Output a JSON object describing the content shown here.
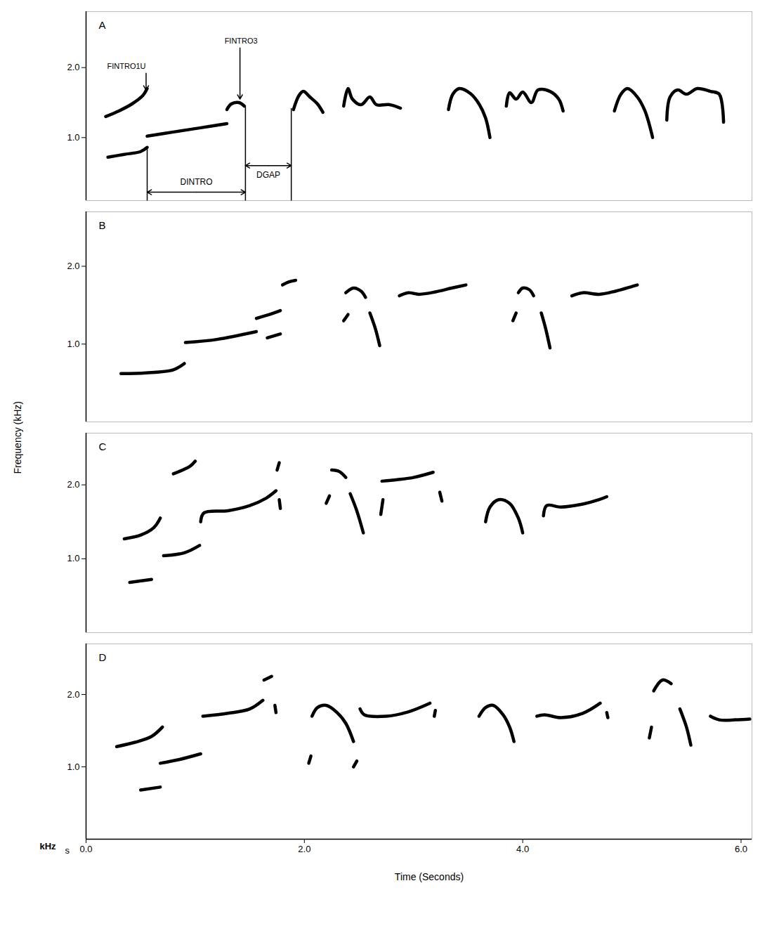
{
  "chart_data": {
    "type": "line",
    "xlabel": "Time (Seconds)",
    "ylabel": "Frequency (kHz)",
    "x_unit": "s",
    "y_unit": "kHz",
    "color": "#000000",
    "xlim": [
      0,
      6.1
    ],
    "xticks": [
      {
        "value": 0,
        "label": "0.0"
      },
      {
        "value": 2,
        "label": "2.0"
      },
      {
        "value": 4,
        "label": "4.0"
      },
      {
        "value": 6,
        "label": "6.0"
      }
    ],
    "panels": [
      {
        "title": "A",
        "ylim": [
          0.1,
          2.8
        ],
        "yticks": [
          {
            "value": 1,
            "label": "1.0"
          },
          {
            "value": 2,
            "label": "2.0"
          }
        ],
        "tick_labels": "y",
        "series": [
          {
            "x": [
              0.18,
              0.3,
              0.42,
              0.52,
              0.56
            ],
            "values": [
              1.3,
              1.38,
              1.48,
              1.6,
              1.7
            ]
          },
          {
            "x": [
              0.2,
              0.35,
              0.5,
              0.56
            ],
            "values": [
              0.72,
              0.76,
              0.8,
              0.86
            ]
          },
          {
            "x": [
              0.56,
              0.8,
              1.05,
              1.29
            ],
            "values": [
              1.02,
              1.08,
              1.14,
              1.2
            ]
          },
          {
            "x": [
              1.29,
              1.33,
              1.4,
              1.45
            ],
            "values": [
              1.4,
              1.48,
              1.5,
              1.45
            ]
          },
          {
            "x": [
              1.9,
              1.95,
              1.99,
              2.05,
              2.12,
              2.17
            ],
            "values": [
              1.4,
              1.6,
              1.66,
              1.58,
              1.48,
              1.36
            ]
          },
          {
            "x": [
              2.36,
              2.4,
              2.44,
              2.52,
              2.6,
              2.66,
              2.78,
              2.88
            ],
            "values": [
              1.45,
              1.7,
              1.55,
              1.47,
              1.58,
              1.47,
              1.47,
              1.42
            ]
          },
          {
            "x": [
              3.32,
              3.36,
              3.42,
              3.52,
              3.6,
              3.66,
              3.7
            ],
            "values": [
              1.4,
              1.62,
              1.7,
              1.63,
              1.48,
              1.28,
              1.0
            ]
          },
          {
            "x": [
              3.85,
              3.88,
              3.94,
              4.0,
              4.08,
              4.14,
              4.25,
              4.33,
              4.37
            ],
            "values": [
              1.45,
              1.64,
              1.55,
              1.65,
              1.5,
              1.68,
              1.66,
              1.55,
              1.38
            ]
          },
          {
            "x": [
              4.84,
              4.9,
              4.96,
              5.05,
              5.12,
              5.19
            ],
            "values": [
              1.38,
              1.62,
              1.7,
              1.58,
              1.38,
              1.0
            ]
          },
          {
            "x": [
              5.32,
              5.35,
              5.42,
              5.5,
              5.6,
              5.72,
              5.8,
              5.84
            ],
            "values": [
              1.25,
              1.58,
              1.68,
              1.62,
              1.7,
              1.66,
              1.62,
              1.22
            ]
          }
        ],
        "annotations": [
          {
            "text": "FINTRO1U",
            "x": 0.37,
            "y": 2.02,
            "x_to": 0.55,
            "y_to": 1.68
          },
          {
            "text": "FINTRO3",
            "x": 1.42,
            "y": 2.38,
            "x_to": 1.41,
            "y_to": 1.55
          }
        ],
        "measures": [
          {
            "label": "DINTRO",
            "x1": 0.56,
            "x2": 1.46,
            "y": 0.22,
            "label_y": 0.36
          },
          {
            "label": "DGAP",
            "x1": 1.46,
            "x2": 1.88,
            "y": 0.6,
            "label_y": 0.46
          }
        ],
        "guides": [
          {
            "x": 0.56,
            "y": 0.86
          },
          {
            "x": 1.46,
            "y": 1.45
          },
          {
            "x": 1.88,
            "y": 1.42
          }
        ]
      },
      {
        "title": "B",
        "ylim": [
          0,
          2.7
        ],
        "yticks": [
          {
            "value": 1,
            "label": "1.0"
          },
          {
            "value": 2,
            "label": "2.0"
          }
        ],
        "tick_labels": "y",
        "series": [
          {
            "x": [
              0.32,
              0.55,
              0.8,
              0.9
            ],
            "values": [
              0.62,
              0.63,
              0.67,
              0.75
            ]
          },
          {
            "x": [
              0.91,
              1.2,
              1.56
            ],
            "values": [
              1.02,
              1.06,
              1.16
            ]
          },
          {
            "x": [
              1.56,
              1.68,
              1.78
            ],
            "values": [
              1.33,
              1.38,
              1.43
            ]
          },
          {
            "x": [
              1.66,
              1.78
            ],
            "values": [
              1.08,
              1.13
            ]
          },
          {
            "x": [
              1.8,
              1.86,
              1.92
            ],
            "values": [
              1.76,
              1.8,
              1.82
            ]
          },
          {
            "x": [
              2.38,
              2.45,
              2.52,
              2.56
            ],
            "values": [
              1.66,
              1.72,
              1.68,
              1.6
            ]
          },
          {
            "x": [
              2.36,
              2.4
            ],
            "values": [
              1.3,
              1.38
            ]
          },
          {
            "x": [
              2.6,
              2.65,
              2.69
            ],
            "values": [
              1.4,
              1.2,
              0.98
            ]
          },
          {
            "x": [
              2.87,
              2.95,
              3.05,
              3.2,
              3.35,
              3.48
            ],
            "values": [
              1.62,
              1.66,
              1.64,
              1.67,
              1.72,
              1.76
            ]
          },
          {
            "x": [
              3.96,
              4.0,
              4.06,
              4.1
            ],
            "values": [
              1.66,
              1.72,
              1.7,
              1.62
            ]
          },
          {
            "x": [
              3.91,
              3.94
            ],
            "values": [
              1.3,
              1.4
            ]
          },
          {
            "x": [
              4.17,
              4.21,
              4.25
            ],
            "values": [
              1.4,
              1.2,
              0.95
            ]
          },
          {
            "x": [
              4.45,
              4.55,
              4.7,
              4.85,
              5.0,
              5.05
            ],
            "values": [
              1.62,
              1.66,
              1.64,
              1.68,
              1.74,
              1.76
            ]
          }
        ]
      },
      {
        "title": "C",
        "ylim": [
          0,
          2.7
        ],
        "yticks": [
          {
            "value": 1,
            "label": "1.0"
          },
          {
            "value": 2,
            "label": "2.0"
          }
        ],
        "tick_labels": "y",
        "series": [
          {
            "x": [
              0.8,
              0.95,
              1.0
            ],
            "values": [
              2.15,
              2.25,
              2.32
            ]
          },
          {
            "x": [
              0.35,
              0.5,
              0.62,
              0.68
            ],
            "values": [
              1.27,
              1.32,
              1.42,
              1.55
            ]
          },
          {
            "x": [
              0.4,
              0.6
            ],
            "values": [
              0.68,
              0.72
            ]
          },
          {
            "x": [
              0.71,
              0.9,
              1.04
            ],
            "values": [
              1.04,
              1.08,
              1.18
            ]
          },
          {
            "x": [
              1.05,
              1.08,
              1.3,
              1.5,
              1.65,
              1.74
            ],
            "values": [
              1.5,
              1.62,
              1.65,
              1.72,
              1.82,
              1.92
            ]
          },
          {
            "x": [
              1.75,
              1.77
            ],
            "values": [
              2.2,
              2.3
            ]
          },
          {
            "x": [
              1.77,
              1.78
            ],
            "values": [
              1.8,
              1.68
            ]
          },
          {
            "x": [
              2.25,
              2.32,
              2.38
            ],
            "values": [
              2.2,
              2.18,
              2.1
            ]
          },
          {
            "x": [
              2.2,
              2.23
            ],
            "values": [
              1.75,
              1.85
            ]
          },
          {
            "x": [
              2.42,
              2.48,
              2.54
            ],
            "values": [
              1.88,
              1.65,
              1.35
            ]
          },
          {
            "x": [
              2.71,
              2.85,
              3.0,
              3.18
            ],
            "values": [
              2.05,
              2.07,
              2.1,
              2.17
            ]
          },
          {
            "x": [
              2.7,
              2.72
            ],
            "values": [
              1.6,
              1.8
            ]
          },
          {
            "x": [
              3.24,
              3.26
            ],
            "values": [
              1.9,
              1.78
            ]
          },
          {
            "x": [
              3.66,
              3.7,
              3.78,
              3.88,
              3.96,
              4.0
            ],
            "values": [
              1.5,
              1.7,
              1.8,
              1.75,
              1.55,
              1.35
            ]
          },
          {
            "x": [
              4.19,
              4.22,
              4.35,
              4.55,
              4.7,
              4.77
            ],
            "values": [
              1.58,
              1.72,
              1.7,
              1.74,
              1.8,
              1.84
            ]
          }
        ]
      },
      {
        "title": "D",
        "ylim": [
          0,
          2.7
        ],
        "yticks": [
          {
            "value": 1,
            "label": "1.0"
          },
          {
            "value": 2,
            "label": "2.0"
          }
        ],
        "series": [
          {
            "x": [
              0.28,
              0.45,
              0.6,
              0.7
            ],
            "values": [
              1.28,
              1.34,
              1.42,
              1.55
            ]
          },
          {
            "x": [
              0.5,
              0.68
            ],
            "values": [
              0.68,
              0.72
            ]
          },
          {
            "x": [
              0.68,
              0.85,
              1.05
            ],
            "values": [
              1.05,
              1.1,
              1.18
            ]
          },
          {
            "x": [
              1.07,
              1.3,
              1.5,
              1.62
            ],
            "values": [
              1.7,
              1.74,
              1.8,
              1.92
            ]
          },
          {
            "x": [
              1.63,
              1.7
            ],
            "values": [
              2.2,
              2.25
            ]
          },
          {
            "x": [
              1.73,
              1.74
            ],
            "values": [
              1.85,
              1.75
            ]
          },
          {
            "x": [
              2.07,
              2.12,
              2.2,
              2.3,
              2.38,
              2.45
            ],
            "values": [
              1.7,
              1.82,
              1.85,
              1.75,
              1.6,
              1.35
            ]
          },
          {
            "x": [
              2.04,
              2.06
            ],
            "values": [
              1.05,
              1.15
            ]
          },
          {
            "x": [
              2.45,
              2.48
            ],
            "values": [
              1.0,
              1.08
            ]
          },
          {
            "x": [
              2.51,
              2.55,
              2.75,
              2.95,
              3.15
            ],
            "values": [
              1.8,
              1.72,
              1.7,
              1.76,
              1.88
            ]
          },
          {
            "x": [
              3.19,
              3.2
            ],
            "values": [
              1.7,
              1.78
            ]
          },
          {
            "x": [
              3.6,
              3.66,
              3.73,
              3.82,
              3.88,
              3.92
            ],
            "values": [
              1.7,
              1.82,
              1.85,
              1.72,
              1.55,
              1.35
            ]
          },
          {
            "x": [
              4.13,
              4.2,
              4.35,
              4.55,
              4.71
            ],
            "values": [
              1.7,
              1.72,
              1.68,
              1.74,
              1.88
            ]
          },
          {
            "x": [
              4.77,
              4.78
            ],
            "values": [
              1.75,
              1.68
            ]
          },
          {
            "x": [
              5.2,
              5.28,
              5.36
            ],
            "values": [
              2.05,
              2.2,
              2.15
            ]
          },
          {
            "x": [
              5.44,
              5.5,
              5.54
            ],
            "values": [
              1.8,
              1.55,
              1.3
            ]
          },
          {
            "x": [
              5.16,
              5.18
            ],
            "values": [
              1.4,
              1.55
            ]
          },
          {
            "x": [
              5.72,
              5.8,
              5.95,
              6.08
            ],
            "values": [
              1.7,
              1.65,
              1.65,
              1.66
            ]
          }
        ]
      }
    ]
  }
}
